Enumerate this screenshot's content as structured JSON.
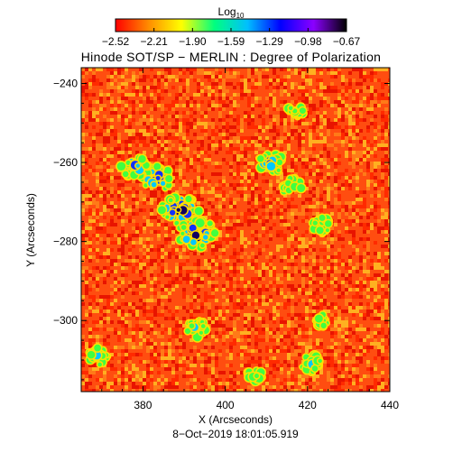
{
  "colorbar": {
    "label_main": "Log",
    "label_sub": "10",
    "ticks": [
      "−2.52",
      "−2.21",
      "−1.90",
      "−1.59",
      "−1.29",
      "−0.98",
      "−0.67"
    ],
    "colors": [
      "#ff0000",
      "#ff8c00",
      "#ffff00",
      "#00ff7f",
      "#00bfff",
      "#0000ff",
      "#8b00ff",
      "#000000"
    ]
  },
  "title": "Hinode SOT/SP − MERLIN : Degree of Polarization",
  "xlabel": "X (Arcseconds)",
  "ylabel": "Y (Arcseconds)",
  "xaxis": {
    "range": [
      365,
      440
    ],
    "ticks": [
      "380",
      "400",
      "420",
      "440"
    ],
    "tick_values": [
      380,
      400,
      420,
      440
    ]
  },
  "yaxis": {
    "range": [
      -318,
      -236
    ],
    "ticks": [
      "−240",
      "−260",
      "−280",
      "−300"
    ],
    "tick_values": [
      -240,
      -260,
      -280,
      -300
    ]
  },
  "timestamp": "8−Oct−2019 18:01:05.919",
  "map_colors": {
    "background": "#ff4d10",
    "speckle": [
      "#ff2a00",
      "#ff7a18",
      "#ffb020",
      "#e81400"
    ],
    "plage": [
      "#ffe000",
      "#40ff40",
      "#00c8ff",
      "#1030ff",
      "#100060"
    ]
  },
  "plage_regions": [
    {
      "x": 389,
      "y": -272,
      "strength": 5
    },
    {
      "x": 393,
      "y": -278,
      "strength": 5
    },
    {
      "x": 383,
      "y": -264,
      "strength": 4
    },
    {
      "x": 378,
      "y": -261,
      "strength": 3
    },
    {
      "x": 411,
      "y": -260,
      "strength": 3
    },
    {
      "x": 416,
      "y": -266,
      "strength": 2
    },
    {
      "x": 424,
      "y": -276,
      "strength": 2
    },
    {
      "x": 417,
      "y": -247,
      "strength": 1
    },
    {
      "x": 369,
      "y": -309,
      "strength": 2
    },
    {
      "x": 393,
      "y": -302,
      "strength": 2
    },
    {
      "x": 421,
      "y": -311,
      "strength": 2
    },
    {
      "x": 407,
      "y": -314,
      "strength": 1
    },
    {
      "x": 424,
      "y": -300,
      "strength": 1
    }
  ]
}
